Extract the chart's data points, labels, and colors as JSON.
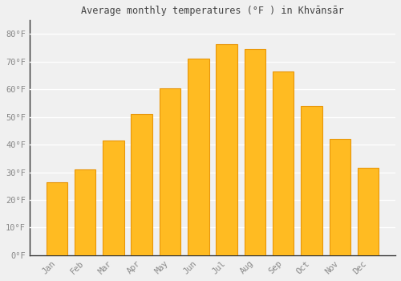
{
  "title": "Average monthly temperatures (°F ) in Khvānsār",
  "months": [
    "Jan",
    "Feb",
    "Mar",
    "Apr",
    "May",
    "Jun",
    "Jul",
    "Aug",
    "Sep",
    "Oct",
    "Nov",
    "Dec"
  ],
  "values": [
    26.5,
    31.0,
    41.5,
    51.0,
    60.5,
    71.0,
    76.5,
    74.5,
    66.5,
    54.0,
    42.0,
    31.5
  ],
  "bar_color": "#FFBB22",
  "bar_edge_color": "#E8960A",
  "background_color": "#F0F0F0",
  "grid_color": "#FFFFFF",
  "tick_label_color": "#888888",
  "title_color": "#444444",
  "spine_color": "#333333",
  "ylim": [
    0,
    85
  ],
  "yticks": [
    0,
    10,
    20,
    30,
    40,
    50,
    60,
    70,
    80
  ],
  "ylabel_suffix": "°F",
  "figsize": [
    5.0,
    3.5
  ],
  "dpi": 100
}
